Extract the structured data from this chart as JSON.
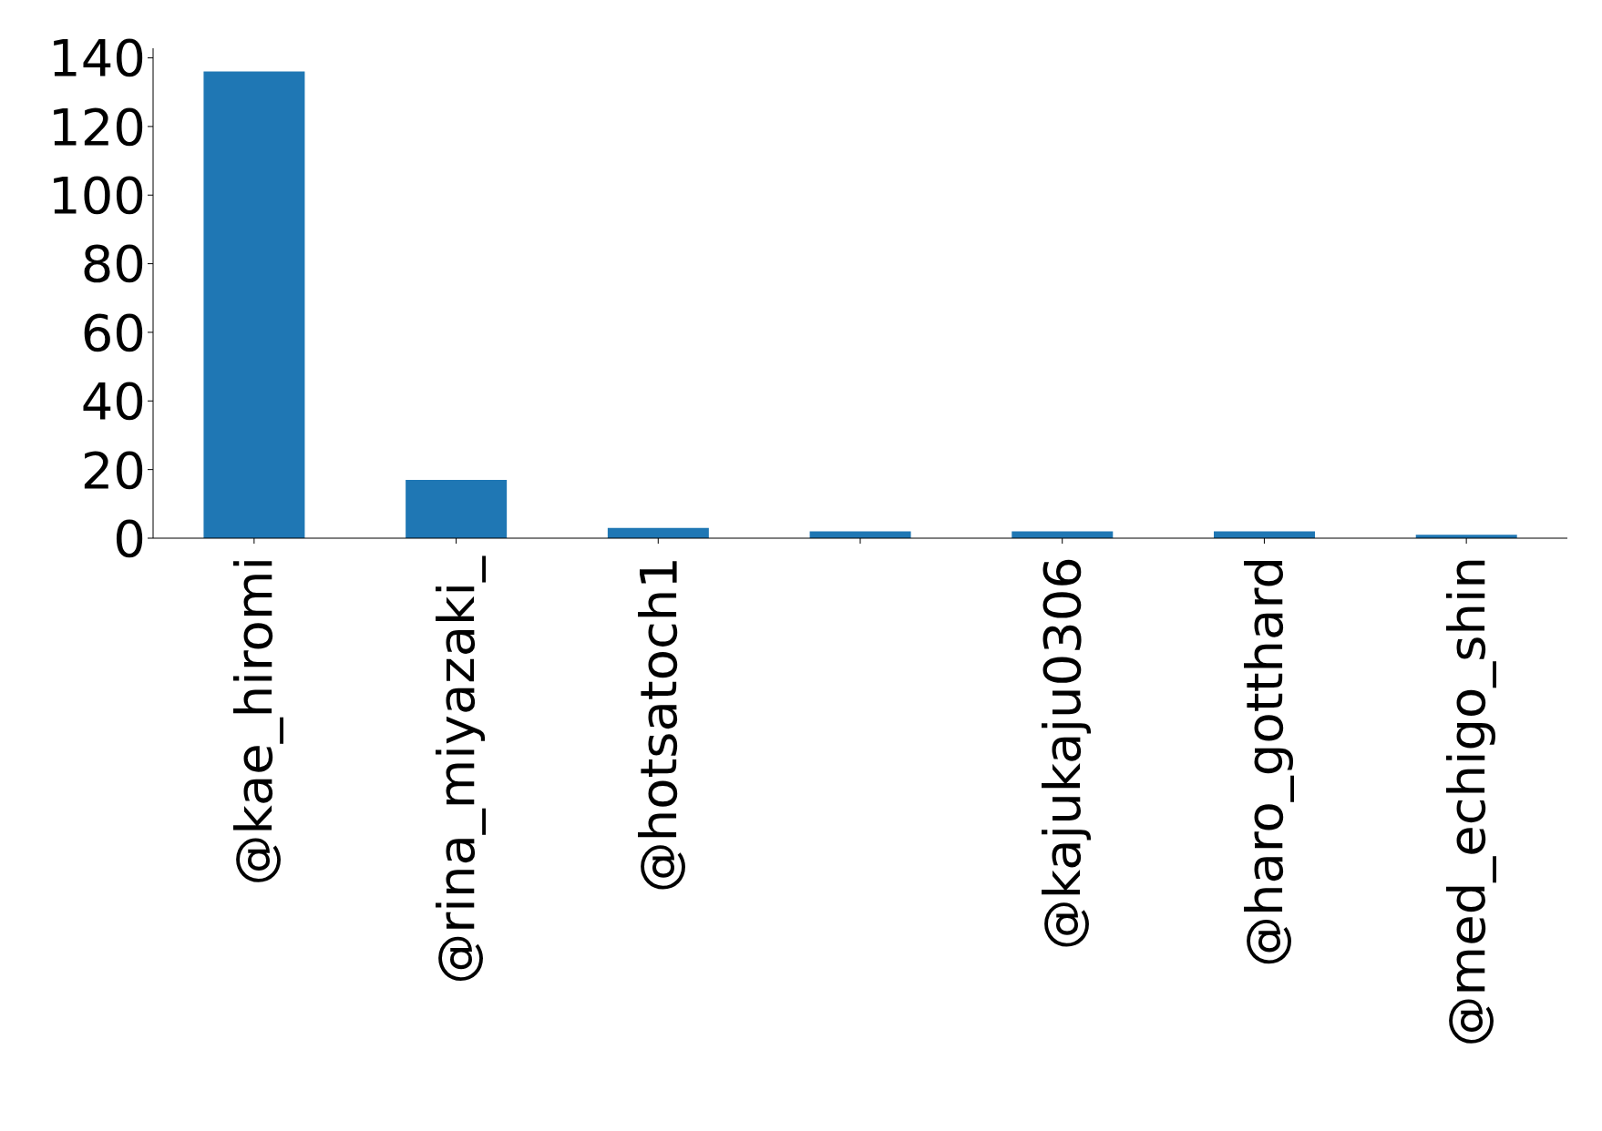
{
  "chart_data": {
    "type": "bar",
    "categories": [
      "@kae_hiromi",
      "@rina_miyazaki_",
      "@hotsatoch1",
      null,
      "@kajukaju0306",
      "@haro_gotthard",
      "@med_echigo_shin"
    ],
    "values": [
      136,
      17,
      3,
      2,
      2,
      2,
      1
    ],
    "color": "#1f77b4",
    "ylim": [
      0,
      142.8
    ],
    "yticks": [
      0,
      20,
      40,
      60,
      80,
      100,
      120,
      140
    ],
    "grid": false,
    "legend": false
  }
}
